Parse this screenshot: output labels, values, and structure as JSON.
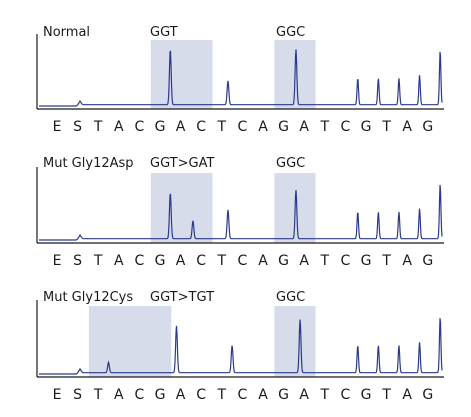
{
  "chart_data": [
    {
      "type": "line",
      "panel_label": "Normal",
      "highlight_labels": [
        "GGT",
        "GGC"
      ],
      "sequence": [
        "E",
        "S",
        "T",
        "A",
        "C",
        "G",
        "A",
        "C",
        "T",
        "C",
        "A",
        "G",
        "A",
        "T",
        "C",
        "G",
        "T",
        "A",
        "G"
      ],
      "highlights": [
        [
          5,
          8
        ],
        [
          11,
          13
        ]
      ],
      "peaks": [
        {
          "pos": 1.1,
          "height": 0.06,
          "width": 0.18
        },
        {
          "pos": 5.5,
          "height": 0.88,
          "width": 0.12
        },
        {
          "pos": 8.3,
          "height": 0.38,
          "width": 0.12
        },
        {
          "pos": 11.6,
          "height": 0.88,
          "width": 0.12
        },
        {
          "pos": 14.6,
          "height": 0.42,
          "width": 0.1
        },
        {
          "pos": 15.6,
          "height": 0.42,
          "width": 0.1
        },
        {
          "pos": 16.6,
          "height": 0.42,
          "width": 0.1
        },
        {
          "pos": 17.6,
          "height": 0.47,
          "width": 0.1
        },
        {
          "pos": 18.6,
          "height": 0.86,
          "width": 0.1
        }
      ],
      "baseline_level": 0.05
    },
    {
      "type": "line",
      "panel_label": "Mut Gly12Asp",
      "highlight_labels": [
        "GGT>GAT",
        "GGC"
      ],
      "sequence": [
        "E",
        "S",
        "T",
        "A",
        "C",
        "G",
        "A",
        "C",
        "T",
        "C",
        "A",
        "G",
        "A",
        "T",
        "C",
        "G",
        "T",
        "A",
        "G"
      ],
      "highlights": [
        [
          5,
          8
        ],
        [
          11,
          13
        ]
      ],
      "peaks": [
        {
          "pos": 1.1,
          "height": 0.06,
          "width": 0.18
        },
        {
          "pos": 5.5,
          "height": 0.72,
          "width": 0.12
        },
        {
          "pos": 6.6,
          "height": 0.28,
          "width": 0.12
        },
        {
          "pos": 8.3,
          "height": 0.45,
          "width": 0.12
        },
        {
          "pos": 11.6,
          "height": 0.76,
          "width": 0.12
        },
        {
          "pos": 14.6,
          "height": 0.42,
          "width": 0.1
        },
        {
          "pos": 15.6,
          "height": 0.42,
          "width": 0.1
        },
        {
          "pos": 16.6,
          "height": 0.42,
          "width": 0.1
        },
        {
          "pos": 17.6,
          "height": 0.47,
          "width": 0.1
        },
        {
          "pos": 18.6,
          "height": 0.86,
          "width": 0.1
        }
      ],
      "baseline_level": 0.05
    },
    {
      "type": "line",
      "panel_label": "Mut Gly12Cys",
      "highlight_labels": [
        "GGT>TGT",
        "GGC"
      ],
      "sequence": [
        "E",
        "S",
        "T",
        "A",
        "C",
        "G",
        "A",
        "C",
        "T",
        "C",
        "A",
        "G",
        "A",
        "T",
        "C",
        "G",
        "T",
        "A",
        "G"
      ],
      "highlights": [
        [
          2,
          6
        ],
        [
          11,
          13
        ]
      ],
      "peaks": [
        {
          "pos": 1.1,
          "height": 0.06,
          "width": 0.18
        },
        {
          "pos": 2.5,
          "height": 0.16,
          "width": 0.12
        },
        {
          "pos": 5.8,
          "height": 0.72,
          "width": 0.12
        },
        {
          "pos": 8.5,
          "height": 0.42,
          "width": 0.12
        },
        {
          "pos": 11.8,
          "height": 0.82,
          "width": 0.12
        },
        {
          "pos": 14.6,
          "height": 0.42,
          "width": 0.1
        },
        {
          "pos": 15.6,
          "height": 0.42,
          "width": 0.1
        },
        {
          "pos": 16.6,
          "height": 0.42,
          "width": 0.1
        },
        {
          "pos": 17.6,
          "height": 0.47,
          "width": 0.1
        },
        {
          "pos": 18.6,
          "height": 0.86,
          "width": 0.1
        }
      ],
      "baseline_level": 0.05
    }
  ],
  "colors": {
    "trace": "#2b3a8c",
    "highlight": "#d6dcea",
    "axis": "#1a1a1a",
    "text": "#1a1a1a"
  }
}
